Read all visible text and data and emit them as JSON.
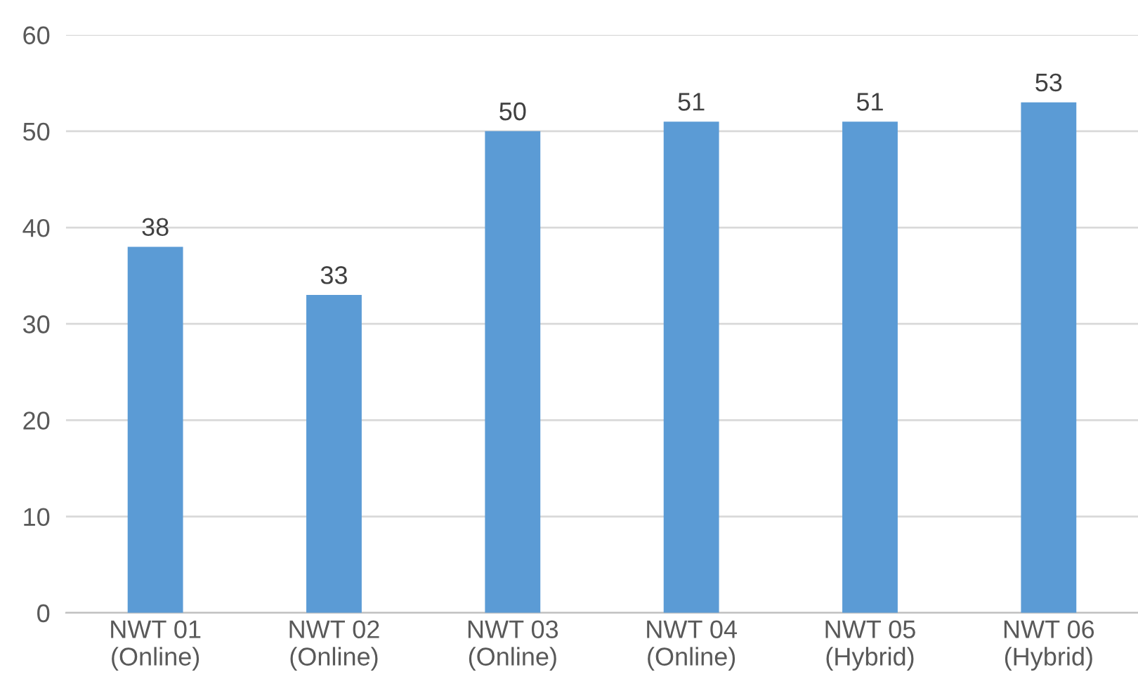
{
  "chart_data": {
    "type": "bar",
    "categories": [
      "NWT 01\n(Online)",
      "NWT 02\n(Online)",
      "NWT 03\n(Online)",
      "NWT 04\n(Online)",
      "NWT 05\n(Hybrid)",
      "NWT 06\n(Hybrid)"
    ],
    "values": [
      38,
      33,
      50,
      51,
      51,
      53
    ],
    "color": "#5b9bd5",
    "ylim": [
      0,
      60
    ],
    "yticks": [
      0,
      10,
      20,
      30,
      40,
      50,
      60
    ],
    "grid": "y",
    "data_labels": true
  }
}
